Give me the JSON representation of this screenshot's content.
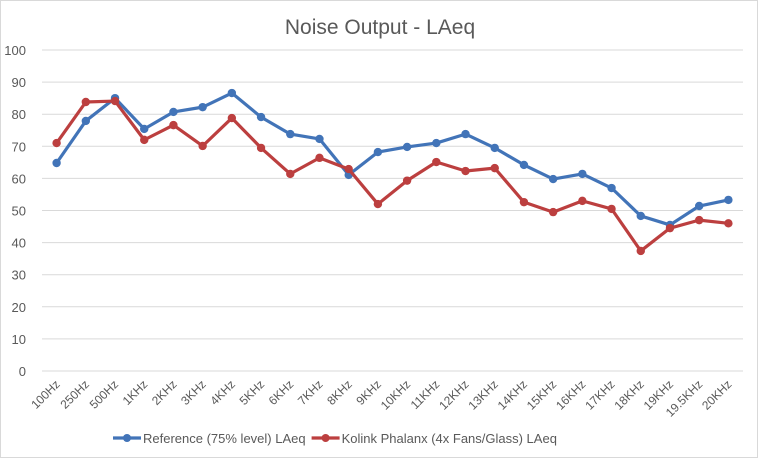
{
  "chart_data": {
    "type": "line",
    "title": "Noise Output - LAeq",
    "xlabel": "",
    "ylabel": "",
    "ylim": [
      0,
      100
    ],
    "yticks": [
      0,
      10,
      20,
      30,
      40,
      50,
      60,
      70,
      80,
      90,
      100
    ],
    "grid": true,
    "legend_position": "bottom",
    "categories": [
      "100Hz",
      "250Hz",
      "500Hz",
      "1KHz",
      "2KHz",
      "3KHz",
      "4KHz",
      "5KHz",
      "6KHz",
      "7KHz",
      "8KHz",
      "9KHz",
      "10KHz",
      "11KHz",
      "12KHz",
      "13KHz",
      "14KHz",
      "15KHz",
      "16KHz",
      "17KHz",
      "18KHz",
      "19KHz",
      "19.5KHz",
      "20KHz"
    ],
    "series": [
      {
        "name": "Reference (75% level) LAeq",
        "color": "#4274B8",
        "values": [
          64.8,
          77.9,
          85.0,
          75.4,
          80.7,
          82.2,
          86.6,
          79.1,
          73.8,
          72.3,
          61.1,
          68.2,
          69.8,
          71.0,
          73.8,
          69.5,
          64.2,
          59.8,
          61.4,
          57.0,
          48.3,
          45.5,
          51.4,
          53.3
        ]
      },
      {
        "name": "Kolink Phalanx (4x Fans/Glass) LAeq",
        "color": "#BC3F3F",
        "values": [
          71.0,
          83.8,
          84.1,
          72.0,
          76.6,
          70.1,
          78.8,
          69.5,
          61.4,
          66.4,
          62.9,
          52.0,
          59.3,
          65.1,
          62.3,
          63.2,
          52.6,
          49.5,
          53.0,
          50.5,
          37.4,
          44.5,
          47.0,
          46.0
        ]
      }
    ]
  }
}
